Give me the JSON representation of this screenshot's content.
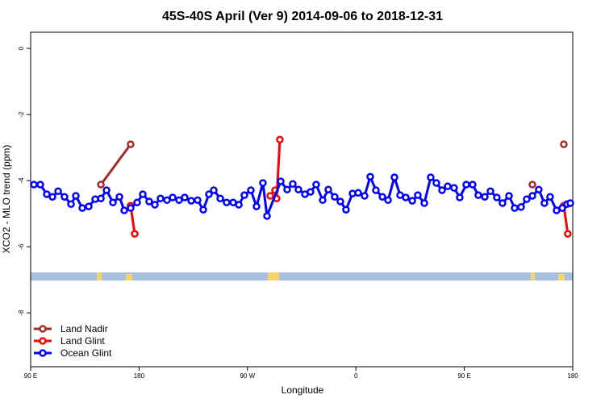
{
  "chart_data": {
    "type": "line",
    "title": "45S-40S April (Ver 9)   2014-09-06 to 2018-12-31",
    "x_label": "Longitude",
    "y_label": "XCO2 - MLO trend (ppm)",
    "xlim": [
      90,
      540
    ],
    "xticks": [
      {
        "value": 90,
        "label": "90 E"
      },
      180,
      {
        "value": 270,
        "label": "90 W"
      },
      {
        "value": 360,
        "label": "0"
      },
      {
        "value": 450,
        "label": "90 E"
      },
      {
        "value": 540,
        "label": "180"
      }
    ],
    "ylim": [
      -9.63,
      0.49
    ],
    "yticks": [
      0,
      -2,
      -4,
      -6,
      -8
    ],
    "legend": "bottom-left",
    "series": [
      {
        "name": "Land Nadir",
        "color": "#a52a2a",
        "x": [
          148.3,
          173.0,
          null,
          506.5,
          null,
          532.6
        ],
        "values": [
          -4.12,
          -2.9,
          null,
          -4.12,
          null,
          -2.9
        ]
      },
      {
        "name": "Land Glint",
        "color": "#ff0000",
        "x": [
          173.0,
          176.4,
          null,
          288.9,
          292.9,
          294.2,
          296.9,
          null,
          532.6,
          535.9
        ],
        "values": [
          -4.76,
          -5.61,
          null,
          -4.46,
          -4.29,
          -4.54,
          -2.76,
          null,
          -4.76,
          -5.61
        ]
      },
      {
        "name": "Ocean Glint",
        "color": "#0000ff",
        "x": [
          92.7,
          98.0,
          103.4,
          108.1,
          112.8,
          118.1,
          123.5,
          127.5,
          132.9,
          138.2,
          143.6,
          148.3,
          153.0,
          158.3,
          163.7,
          167.7,
          173.0,
          178.4,
          183.1,
          188.4,
          193.1,
          197.8,
          203.2,
          207.9,
          213.2,
          217.9,
          223.3,
          228.6,
          233.3,
          238.0,
          242.0,
          247.4,
          252.7,
          258.1,
          262.8,
          267.4,
          272.8,
          277.5,
          282.8,
          286.2,
          297.6,
          302.9,
          307.6,
          312.3,
          317.7,
          322.3,
          327.0,
          332.4,
          337.1,
          342.4,
          347.1,
          351.8,
          357.2,
          361.9,
          367.2,
          371.9,
          376.6,
          382.0,
          386.7,
          392.0,
          396.7,
          401.4,
          406.8,
          411.4,
          416.8,
          422.1,
          426.8,
          431.5,
          436.2,
          441.5,
          446.2,
          451.6,
          456.9,
          461.6,
          467.0,
          471.7,
          477.0,
          481.7,
          487.1,
          491.8,
          497.1,
          501.8,
          506.5,
          511.8,
          516.5,
          521.2,
          526.6,
          531.3,
          535.3,
          538.0
        ],
        "values": [
          -4.12,
          -4.12,
          -4.41,
          -4.49,
          -4.32,
          -4.49,
          -4.71,
          -4.46,
          -4.83,
          -4.78,
          -4.56,
          -4.54,
          -4.29,
          -4.66,
          -4.49,
          -4.9,
          -4.83,
          -4.66,
          -4.41,
          -4.63,
          -4.73,
          -4.54,
          -4.59,
          -4.51,
          -4.59,
          -4.51,
          -4.61,
          -4.59,
          -4.88,
          -4.41,
          -4.29,
          -4.54,
          -4.66,
          -4.66,
          -4.73,
          -4.44,
          -4.29,
          -4.78,
          -4.07,
          -5.07,
          -4.02,
          -4.27,
          -4.1,
          -4.27,
          -4.41,
          -4.34,
          -4.12,
          -4.59,
          -4.27,
          -4.49,
          -4.63,
          -4.88,
          -4.39,
          -4.37,
          -4.46,
          -3.88,
          -4.29,
          -4.49,
          -4.59,
          -3.9,
          -4.44,
          -4.51,
          -4.61,
          -4.44,
          -4.68,
          -3.9,
          -4.07,
          -4.29,
          -4.17,
          -4.22,
          -4.51,
          -4.12,
          -4.12,
          -4.44,
          -4.49,
          -4.32,
          -4.51,
          -4.68,
          -4.46,
          -4.83,
          -4.8,
          -4.56,
          -4.46,
          -4.27,
          -4.68,
          -4.49,
          -4.9,
          -4.83,
          -4.71,
          -4.68
        ]
      }
    ]
  }
}
